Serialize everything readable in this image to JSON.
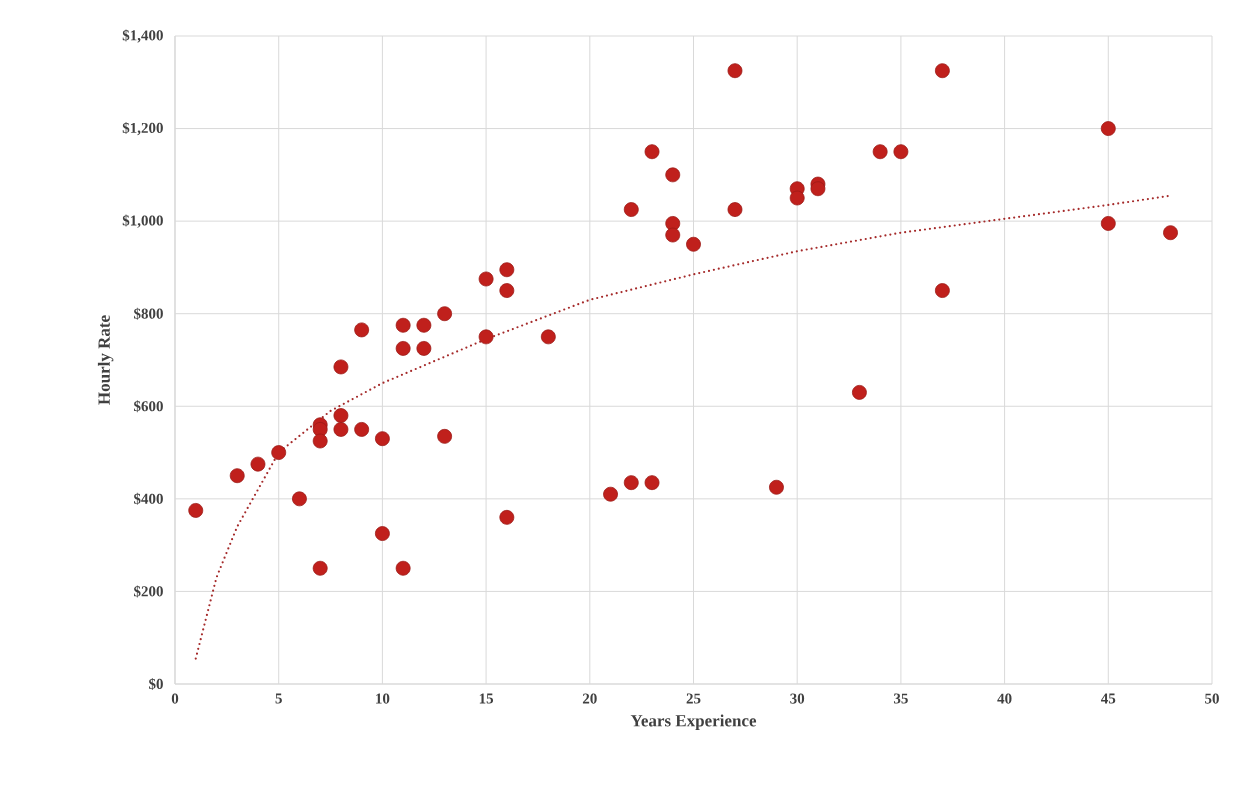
{
  "chart_data": {
    "type": "scatter",
    "xlabel": "Years Experience",
    "ylabel": "Hourly Rate",
    "xlim": [
      0,
      50
    ],
    "xticks": [
      0,
      5,
      10,
      15,
      20,
      25,
      30,
      35,
      40,
      45,
      50
    ],
    "ylim": [
      0,
      1400
    ],
    "yticks": [
      {
        "value": 0,
        "label": "$0"
      },
      {
        "value": 200,
        "label": "$200"
      },
      {
        "value": 400,
        "label": "$400"
      },
      {
        "value": 600,
        "label": "$600"
      },
      {
        "value": 800,
        "label": "$800"
      },
      {
        "value": 1000,
        "label": "$1,000"
      },
      {
        "value": 1200,
        "label": "$1,200"
      },
      {
        "value": 1400,
        "label": "$1,400"
      }
    ],
    "grid": true,
    "series": [
      {
        "color": "#c0201c",
        "marker": "circle",
        "x": [
          1,
          3,
          4,
          5,
          6,
          7,
          7,
          7,
          7,
          8,
          8,
          8,
          9,
          9,
          10,
          10,
          11,
          11,
          11,
          12,
          12,
          13,
          13,
          15,
          15,
          16,
          16,
          16,
          18,
          21,
          22,
          22,
          23,
          23,
          24,
          24,
          24,
          25,
          27,
          27,
          29,
          30,
          30,
          31,
          31,
          33,
          34,
          35,
          37,
          37,
          45,
          45,
          48
        ],
        "values": [
          375,
          450,
          475,
          500,
          400,
          560,
          550,
          525,
          250,
          685,
          580,
          550,
          765,
          550,
          530,
          325,
          775,
          725,
          250,
          775,
          725,
          800,
          535,
          875,
          750,
          895,
          850,
          360,
          750,
          410,
          1025,
          435,
          1150,
          435,
          1100,
          995,
          970,
          950,
          1325,
          1025,
          425,
          1070,
          1050,
          1080,
          1070,
          630,
          1150,
          1150,
          1325,
          850,
          1200,
          995,
          975
        ]
      },
      {
        "type": "line",
        "color": "#a52a2a",
        "marker": "none",
        "line_style": "dotted",
        "x": [
          1,
          2,
          3,
          5,
          7.5,
          10,
          15,
          20,
          25,
          30,
          35,
          40,
          45,
          48
        ],
        "values": [
          55,
          230,
          340,
          500,
          590,
          650,
          745,
          830,
          885,
          935,
          975,
          1005,
          1035,
          1055
        ]
      }
    ]
  }
}
